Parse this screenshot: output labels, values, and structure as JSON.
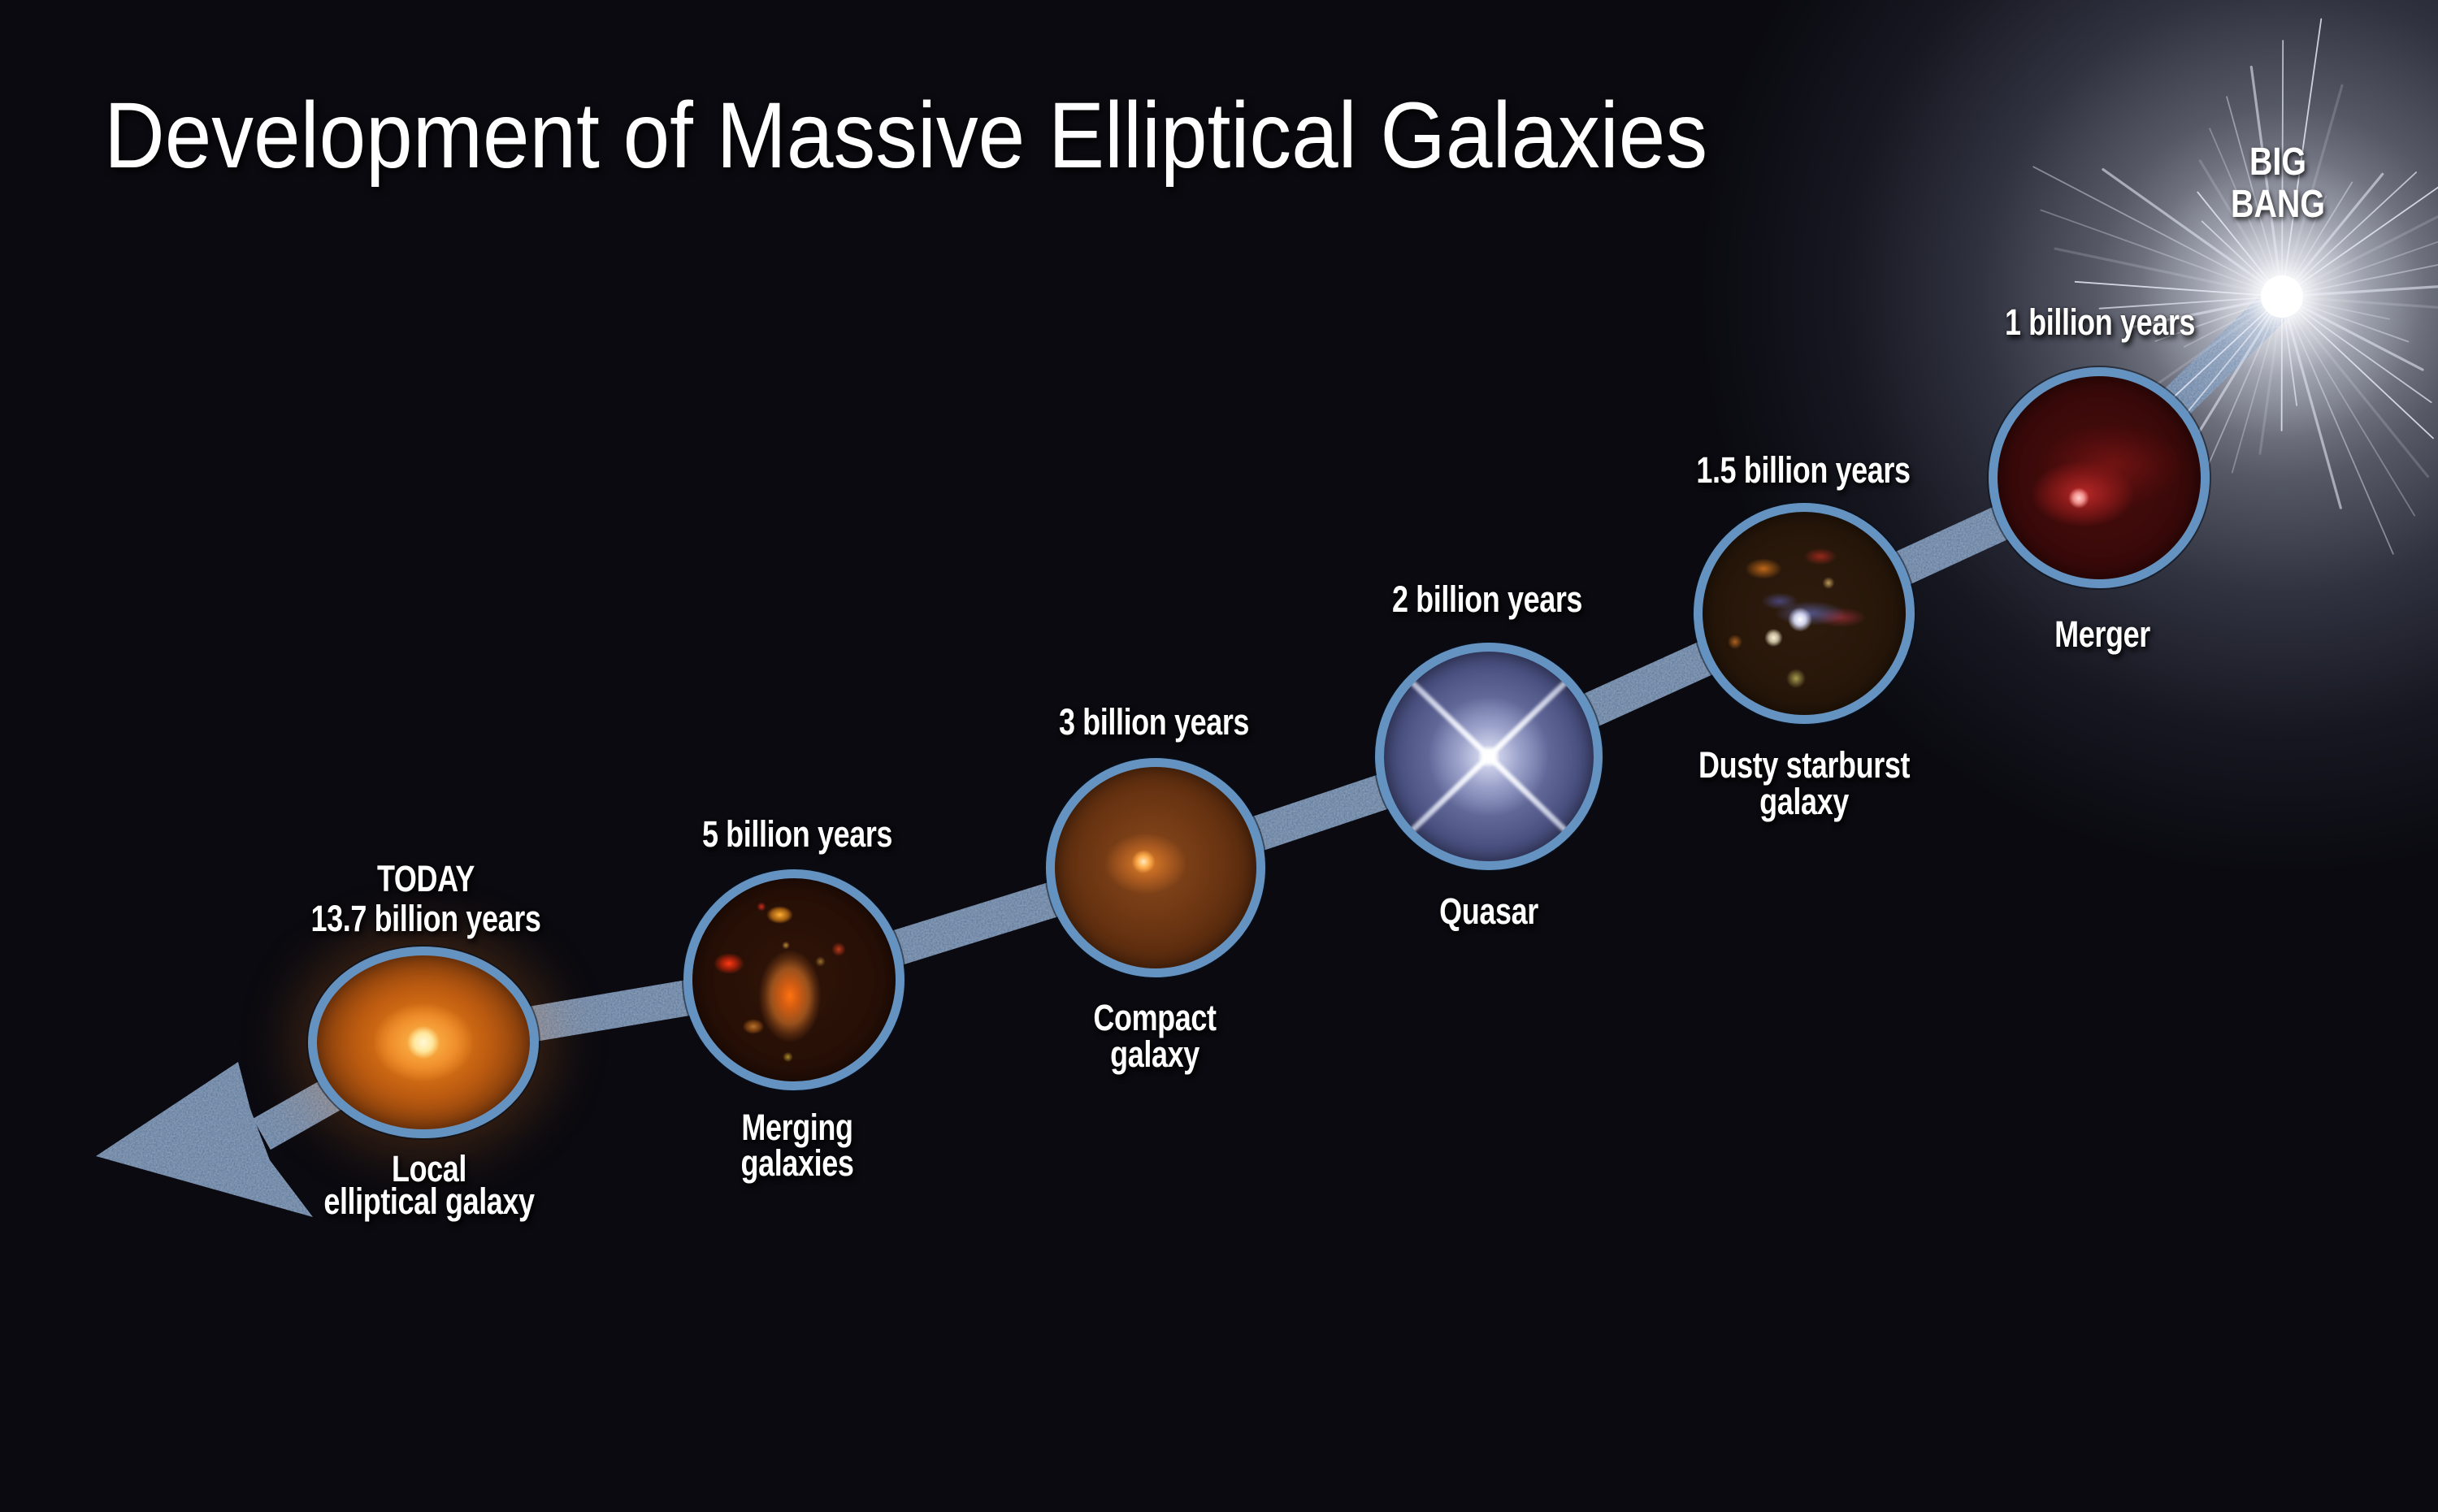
{
  "title": "Development of Massive Elliptical Galaxies",
  "big_bang": {
    "lines": [
      "BIG",
      "BANG"
    ]
  },
  "stages": [
    {
      "time_lines": [
        "1 billion years"
      ],
      "name_lines": [
        "Merger"
      ]
    },
    {
      "time_lines": [
        "1.5 billion years"
      ],
      "name_lines": [
        "Dusty starburst",
        "galaxy"
      ]
    },
    {
      "time_lines": [
        "2 billion years"
      ],
      "name_lines": [
        "Quasar"
      ]
    },
    {
      "time_lines": [
        "3 billion years"
      ],
      "name_lines": [
        "Compact",
        "galaxy"
      ]
    },
    {
      "time_lines": [
        "5 billion years"
      ],
      "name_lines": [
        "Merging",
        "galaxies"
      ]
    },
    {
      "time_lines": [
        "TODAY",
        "13.7 billion years"
      ],
      "name_lines": [
        "Local",
        "elliptical galaxy"
      ]
    }
  ],
  "colors": {
    "background": "#0a0a10",
    "ring": "#6593c1",
    "arrow": "#52779e",
    "text": "#ffffff"
  }
}
